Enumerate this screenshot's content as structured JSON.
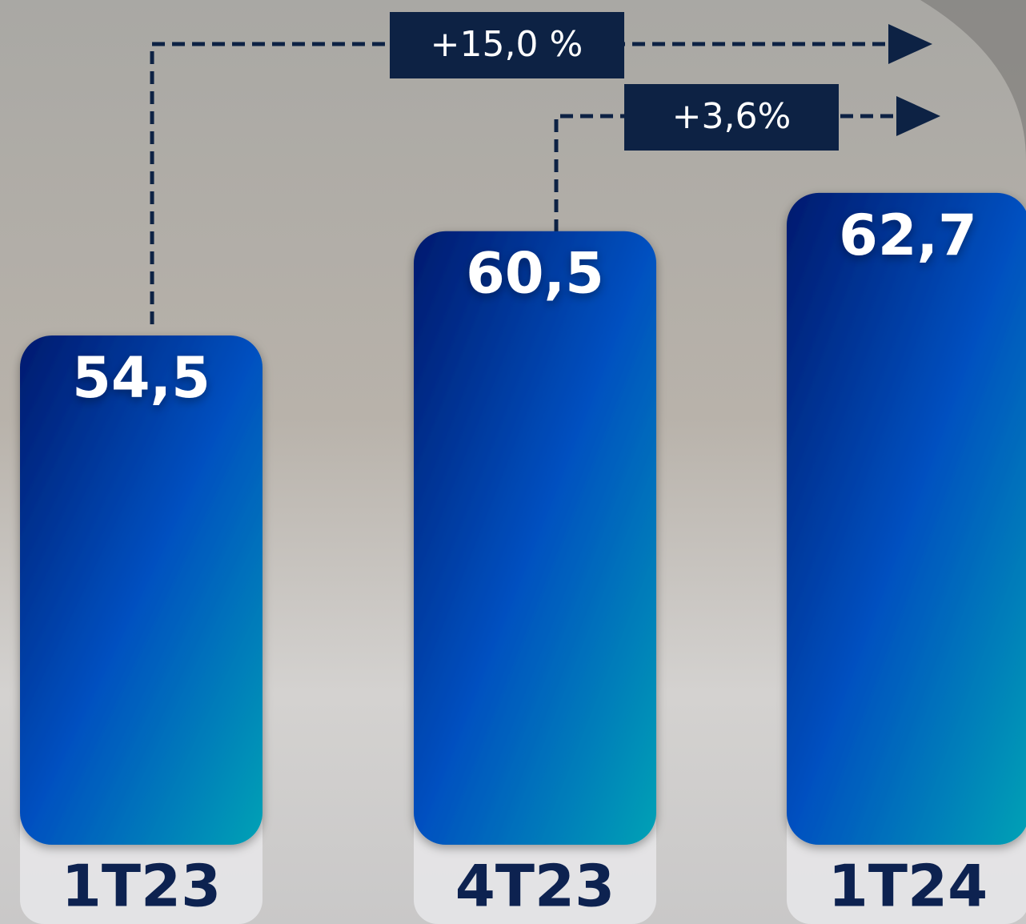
{
  "chart_data": {
    "type": "bar",
    "categories": [
      "1T23",
      "4T23",
      "1T24"
    ],
    "values": [
      54.5,
      60.5,
      62.7
    ],
    "value_labels": [
      "54,5",
      "60,5",
      "62,7"
    ],
    "colors": [
      "#001a6e",
      "#0050c0",
      "#00a2b5"
    ],
    "ylim": [
      25.2,
      65
    ],
    "annotations": [
      "+15,0 %",
      "+3,6%"
    ]
  }
}
